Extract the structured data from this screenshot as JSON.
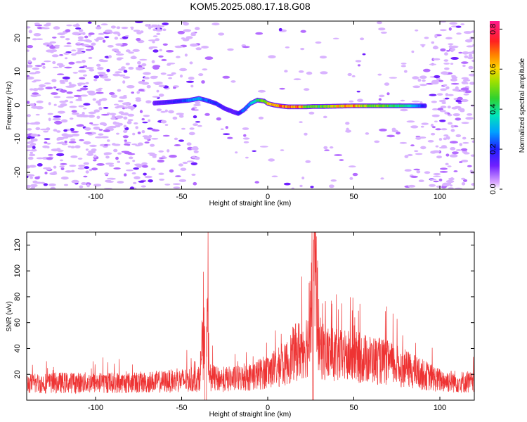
{
  "title": "KOM5.2025.080.17.18.G08",
  "colors": {
    "snr_line": "#ee3333",
    "axes": "#000000",
    "background": "#ffffff"
  },
  "chart_data": [
    {
      "type": "heatmap",
      "xlabel": "Height of straight line (km)",
      "ylabel": "Frequency (Hz)",
      "xlim": [
        -140,
        120
      ],
      "ylim": [
        -25,
        25
      ],
      "x_ticks": [
        -100,
        -50,
        0,
        50,
        100
      ],
      "y_ticks": [
        -20,
        -10,
        0,
        10,
        20
      ],
      "colorbar": {
        "label": "Normalized spectral amplitude",
        "range": [
          0,
          0.84
        ],
        "ticks": [
          0.0,
          0.2,
          0.4,
          0.6,
          0.8
        ],
        "colormap": "rainbow (violet to magenta)"
      },
      "signal_trace": {
        "x": [
          -66,
          -55,
          -45,
          -40,
          -36,
          -30,
          -25,
          -20,
          -17,
          -14,
          -10,
          -6,
          -2,
          0,
          4,
          8,
          12,
          16,
          20,
          22,
          26,
          30,
          40,
          50,
          60,
          70,
          80,
          88,
          92
        ],
        "freq": [
          0.6,
          1.0,
          1.5,
          2.0,
          1.5,
          0.5,
          -1.0,
          -2.0,
          -2.5,
          -1.5,
          0.5,
          1.5,
          1.2,
          0.5,
          0.0,
          -0.3,
          -0.5,
          -0.5,
          -0.5,
          -0.5,
          -0.4,
          -0.4,
          -0.3,
          -0.2,
          -0.2,
          -0.2,
          -0.2,
          -0.2,
          -0.2
        ],
        "amplitude": [
          0.15,
          0.2,
          0.3,
          0.35,
          0.3,
          0.25,
          0.2,
          0.15,
          0.2,
          0.3,
          0.35,
          0.45,
          0.6,
          0.7,
          0.75,
          0.8,
          0.75,
          0.8,
          0.75,
          0.55,
          0.6,
          0.55,
          0.7,
          0.75,
          0.6,
          0.55,
          0.45,
          0.3,
          0.2
        ]
      }
    },
    {
      "type": "line",
      "xlabel": "Height of straight line (km)",
      "ylabel": "SNR (v/v)",
      "xlim": [
        -140,
        120
      ],
      "ylim": [
        0,
        130
      ],
      "x_ticks": [
        -100,
        -50,
        0,
        50,
        100
      ],
      "y_ticks": [
        20,
        40,
        60,
        80,
        100,
        120
      ],
      "series": [
        {
          "color": "#ee3333",
          "x": [
            -140,
            -120,
            -100,
            -80,
            -60,
            -50,
            -40,
            -37,
            -35,
            -34,
            -30,
            -20,
            -10,
            0,
            10,
            15,
            20,
            24,
            25,
            26,
            27,
            28,
            29,
            30,
            35,
            40,
            50,
            60,
            70,
            80,
            90,
            100,
            110,
            120
          ],
          "y": [
            14,
            15,
            15,
            15,
            16,
            17,
            18,
            50,
            85,
            20,
            18,
            18,
            20,
            25,
            30,
            40,
            45,
            50,
            100,
            115,
            130,
            110,
            75,
            45,
            40,
            38,
            37,
            35,
            32,
            27,
            22,
            17,
            16,
            15
          ]
        }
      ]
    }
  ]
}
